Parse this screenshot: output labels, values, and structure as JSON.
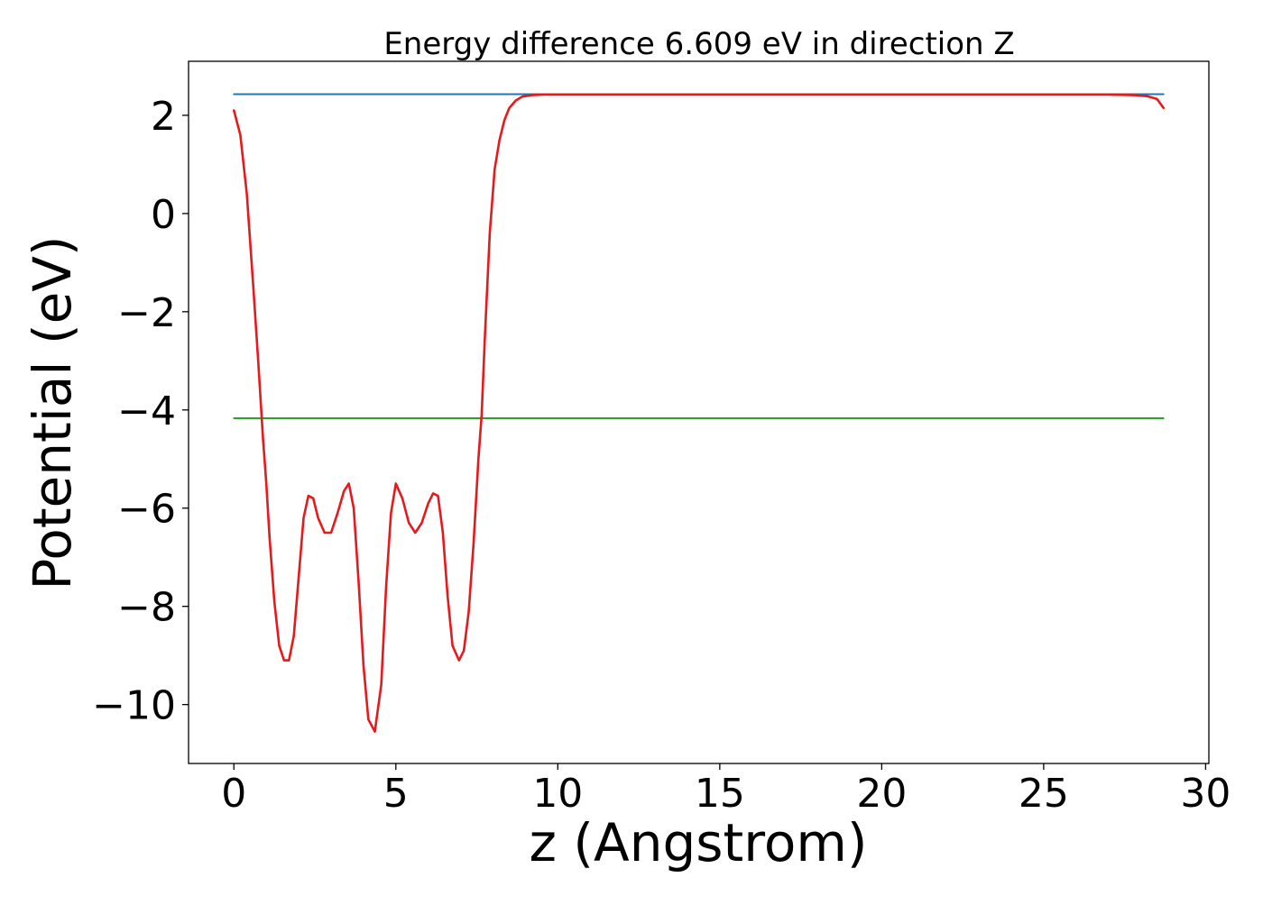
{
  "chart_data": {
    "type": "line",
    "title": "Energy difference 6.609 eV in direction Z",
    "xlabel": "z (Angstrom)",
    "ylabel": "Potential (eV)",
    "xlim": [
      -1.4,
      30.1
    ],
    "ylim": [
      -11.2,
      3.1
    ],
    "xticks": [
      0,
      5,
      10,
      15,
      20,
      25,
      30
    ],
    "yticks": [
      2,
      0,
      -2,
      -4,
      -6,
      -8,
      -10
    ],
    "grid": false,
    "legend": "none",
    "series": [
      {
        "color": "#1f77b4",
        "x": [
          0,
          28.7
        ],
        "y": [
          2.43,
          2.43
        ]
      },
      {
        "color": "#2ca02c",
        "x": [
          0,
          28.7
        ],
        "y": [
          -4.17,
          -4.17
        ]
      },
      {
        "color": "#e41a1c",
        "x": [
          0,
          0.2,
          0.4,
          0.6,
          0.75,
          0.9,
          1.0,
          1.1,
          1.25,
          1.4,
          1.55,
          1.7,
          1.85,
          2.0,
          2.15,
          2.3,
          2.45,
          2.6,
          2.8,
          3.0,
          3.2,
          3.4,
          3.55,
          3.7,
          3.85,
          4.0,
          4.15,
          4.35,
          4.55,
          4.7,
          4.85,
          5.0,
          5.2,
          5.4,
          5.6,
          5.8,
          6.0,
          6.15,
          6.3,
          6.45,
          6.6,
          6.75,
          6.95,
          7.1,
          7.25,
          7.4,
          7.55,
          7.65,
          7.75,
          7.9,
          8.05,
          8.2,
          8.35,
          8.5,
          8.7,
          8.9,
          9.2,
          9.5,
          10.0,
          11.0,
          15.0,
          20.0,
          25.0,
          27.0,
          27.8,
          28.2,
          28.5,
          28.7
        ],
        "y": [
          2.1,
          1.6,
          0.4,
          -1.5,
          -3.0,
          -4.6,
          -5.5,
          -6.6,
          -7.9,
          -8.8,
          -9.1,
          -9.1,
          -8.6,
          -7.4,
          -6.2,
          -5.75,
          -5.8,
          -6.2,
          -6.5,
          -6.5,
          -6.1,
          -5.65,
          -5.5,
          -6.0,
          -7.5,
          -9.2,
          -10.3,
          -10.55,
          -9.6,
          -7.6,
          -6.1,
          -5.5,
          -5.8,
          -6.3,
          -6.5,
          -6.3,
          -5.9,
          -5.7,
          -5.75,
          -6.5,
          -7.8,
          -8.8,
          -9.1,
          -8.9,
          -8.1,
          -6.7,
          -5.0,
          -4.1,
          -2.5,
          -0.4,
          0.9,
          1.5,
          1.9,
          2.15,
          2.3,
          2.38,
          2.41,
          2.42,
          2.42,
          2.42,
          2.42,
          2.42,
          2.42,
          2.42,
          2.41,
          2.39,
          2.33,
          2.15
        ]
      }
    ]
  }
}
